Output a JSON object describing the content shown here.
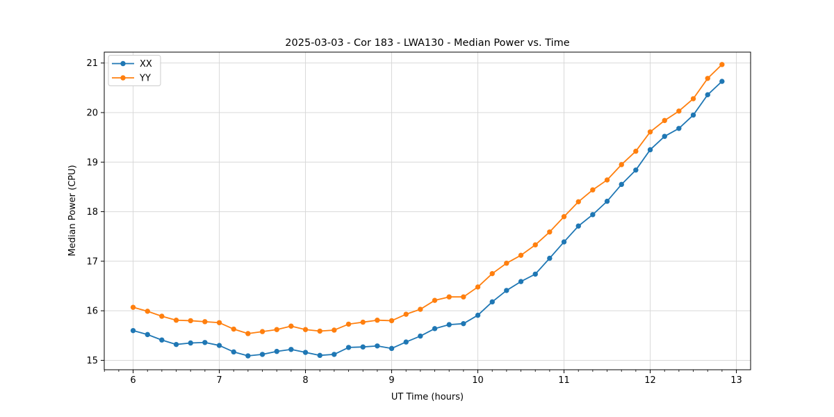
{
  "chart_data": {
    "type": "line",
    "title": "2025-03-03 - Cor 183 - LWA130 - Median Power vs. Time",
    "xlabel": "UT Time (hours)",
    "ylabel": "Median Power (CPU)",
    "xlim": [
      5.665,
      13.165
    ],
    "ylim": [
      14.81,
      21.22
    ],
    "xticks": [
      6,
      7,
      8,
      9,
      10,
      11,
      12,
      13
    ],
    "yticks": [
      15,
      16,
      17,
      18,
      19,
      20,
      21
    ],
    "x_minor_step": 0.166667,
    "grid": true,
    "legend_position": "upper-left",
    "x": [
      6.0,
      6.167,
      6.333,
      6.5,
      6.667,
      6.833,
      7.0,
      7.167,
      7.333,
      7.5,
      7.667,
      7.833,
      8.0,
      8.167,
      8.333,
      8.5,
      8.667,
      8.833,
      9.0,
      9.167,
      9.333,
      9.5,
      9.667,
      9.833,
      10.0,
      10.167,
      10.333,
      10.5,
      10.667,
      10.833,
      11.0,
      11.167,
      11.333,
      11.5,
      11.667,
      11.833,
      12.0,
      12.167,
      12.333,
      12.5,
      12.667,
      12.833
    ],
    "series": [
      {
        "name": "XX",
        "color": "#1f77b4",
        "values": [
          15.6,
          15.52,
          15.41,
          15.32,
          15.35,
          15.36,
          15.3,
          15.17,
          15.09,
          15.12,
          15.18,
          15.22,
          15.16,
          15.1,
          15.12,
          15.26,
          15.27,
          15.29,
          15.24,
          15.37,
          15.49,
          15.64,
          15.72,
          15.74,
          15.91,
          16.18,
          16.41,
          16.59,
          16.74,
          17.06,
          17.39,
          17.71,
          17.94,
          18.21,
          18.55,
          18.84,
          19.25,
          19.52,
          19.68,
          19.95,
          20.36,
          20.63
        ]
      },
      {
        "name": "YY",
        "color": "#ff7f0e",
        "values": [
          16.07,
          15.99,
          15.89,
          15.81,
          15.8,
          15.78,
          15.76,
          15.63,
          15.54,
          15.58,
          15.62,
          15.69,
          15.62,
          15.59,
          15.61,
          15.73,
          15.77,
          15.81,
          15.8,
          15.93,
          16.03,
          16.21,
          16.28,
          16.28,
          16.48,
          16.75,
          16.96,
          17.12,
          17.33,
          17.59,
          17.9,
          18.2,
          18.44,
          18.64,
          18.95,
          19.22,
          19.61,
          19.84,
          20.03,
          20.28,
          20.69,
          20.97
        ]
      }
    ],
    "style": {
      "grid_color": "#d8d8d8",
      "spine_color": "#000000",
      "background": "#ffffff",
      "legend_border": "#cccccc"
    }
  }
}
